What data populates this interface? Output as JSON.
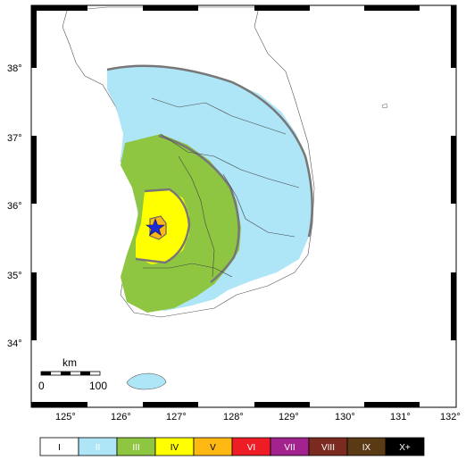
{
  "map": {
    "lon_labels": [
      "125°",
      "126°",
      "127°",
      "128°",
      "129°",
      "130°",
      "131°",
      "132°"
    ],
    "lat_labels": [
      "38°",
      "37°",
      "36°",
      "35°",
      "34°"
    ],
    "scale_bar": {
      "unit": "km",
      "start": "0",
      "end": "100"
    },
    "epicenter_icon": "star-icon"
  },
  "legend": {
    "classes": [
      {
        "label": "I",
        "color": "#ffffff",
        "text_color": "#000000"
      },
      {
        "label": "II",
        "color": "#aee6f8",
        "text_color": "#ffffff"
      },
      {
        "label": "III",
        "color": "#8ec641",
        "text_color": "#ffffff"
      },
      {
        "label": "IV",
        "color": "#ffff00",
        "text_color": "#000000"
      },
      {
        "label": "V",
        "color": "#fdb813",
        "text_color": "#000000"
      },
      {
        "label": "VI",
        "color": "#ee1c25",
        "text_color": "#ffffff"
      },
      {
        "label": "VII",
        "color": "#a3238e",
        "text_color": "#ffffff"
      },
      {
        "label": "VIII",
        "color": "#7b2a1f",
        "text_color": "#ffffff"
      },
      {
        "label": "IX",
        "color": "#5a3a14",
        "text_color": "#ffffff"
      },
      {
        "label": "X+",
        "color": "#000000",
        "text_color": "#ffffff"
      }
    ]
  }
}
